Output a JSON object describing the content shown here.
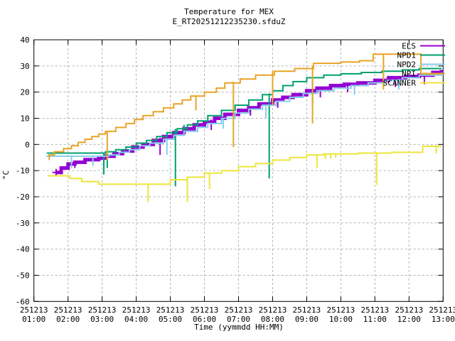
{
  "chart_data": {
    "type": "line",
    "title": "Temperature for MEX",
    "subtitle": "E_RT20251212235230.sfduZ",
    "xlabel": "Time (yymmdd HH:MM)",
    "ylabel": "°C",
    "ylim": [
      -60,
      40
    ],
    "xlim_hours": [
      1,
      13
    ],
    "grid": true,
    "legend_position": "top-right-inside",
    "y_ticks": [
      40,
      30,
      20,
      10,
      0,
      -10,
      -20,
      -30,
      -40,
      -50,
      -60
    ],
    "x_ticks": [
      {
        "date": "251213",
        "time": "01:00",
        "hour": 1
      },
      {
        "date": "251213",
        "time": "02:00",
        "hour": 2
      },
      {
        "date": "251213",
        "time": "03:00",
        "hour": 3
      },
      {
        "date": "251213",
        "time": "04:00",
        "hour": 4
      },
      {
        "date": "251213",
        "time": "05:00",
        "hour": 5
      },
      {
        "date": "251213",
        "time": "06:00",
        "hour": 6
      },
      {
        "date": "251213",
        "time": "07:00",
        "hour": 7
      },
      {
        "date": "251213",
        "time": "08:00",
        "hour": 8
      },
      {
        "date": "251213",
        "time": "09:00",
        "hour": 9
      },
      {
        "date": "251213",
        "time": "10:00",
        "hour": 10
      },
      {
        "date": "251213",
        "time": "11:00",
        "hour": 11
      },
      {
        "date": "251213",
        "time": "12:00",
        "hour": 12
      },
      {
        "date": "251213",
        "time": "13:00",
        "hour": 13
      }
    ],
    "colors": {
      "axis": "#000000",
      "grid": "#b3b3b3",
      "ELS": "#9400d3",
      "NPD1": "#00a070",
      "NPD2": "#87ceeb",
      "NPI": "#e8a427",
      "SCANNER": "#ece53b"
    },
    "series": [
      {
        "name": "ELS",
        "color": "#9400d3",
        "width": 5,
        "start_marker": "plus",
        "points": [
          [
            1.65,
            -10.7
          ],
          [
            1.8,
            -9
          ],
          [
            2.0,
            -7.5
          ],
          [
            2.2,
            -6.8
          ],
          [
            2.5,
            -5.8
          ],
          [
            2.9,
            -5.2
          ],
          [
            3.1,
            -4.5
          ],
          [
            3.35,
            -3.5
          ],
          [
            3.6,
            -2.5
          ],
          [
            3.9,
            -1
          ],
          [
            4.2,
            0
          ],
          [
            4.5,
            1.5
          ],
          [
            4.8,
            3
          ],
          [
            5.1,
            4.5
          ],
          [
            5.4,
            6
          ],
          [
            5.7,
            7.5
          ],
          [
            6.0,
            8.5
          ],
          [
            6.3,
            10
          ],
          [
            6.6,
            11.5
          ],
          [
            7.0,
            13
          ],
          [
            7.3,
            14
          ],
          [
            7.6,
            15.5
          ],
          [
            8.0,
            17
          ],
          [
            8.3,
            18
          ],
          [
            8.6,
            19
          ],
          [
            9.0,
            20.5
          ],
          [
            9.3,
            21.5
          ],
          [
            9.7,
            22.5
          ],
          [
            10.1,
            23
          ],
          [
            10.5,
            23.5
          ],
          [
            11.0,
            24.5
          ],
          [
            11.4,
            25.5
          ],
          [
            11.9,
            26
          ],
          [
            12.3,
            26.5
          ],
          [
            12.7,
            27.5
          ],
          [
            12.95,
            28.5
          ]
        ],
        "spikes": [
          [
            2.2,
            -6.8,
            -9
          ],
          [
            3.05,
            -4.5,
            -7.5
          ],
          [
            4.7,
            2.5,
            -4
          ],
          [
            6.2,
            9.5,
            5.5
          ],
          [
            7.35,
            14,
            11
          ],
          [
            8.15,
            17.5,
            14
          ],
          [
            9.4,
            21.5,
            18
          ],
          [
            10.2,
            23,
            20
          ],
          [
            11.6,
            25.5,
            22
          ],
          [
            12.45,
            27,
            23
          ]
        ]
      },
      {
        "name": "NPD1",
        "color": "#00a070",
        "width": 2,
        "start_marker": "",
        "points": [
          [
            1.38,
            -3.3
          ],
          [
            2.95,
            -3.3
          ],
          [
            3.1,
            -2.8
          ],
          [
            3.4,
            -2
          ],
          [
            3.7,
            -1
          ],
          [
            4.0,
            0.5
          ],
          [
            4.3,
            1.5
          ],
          [
            4.6,
            3
          ],
          [
            4.9,
            4.5
          ],
          [
            5.2,
            6
          ],
          [
            5.5,
            7.5
          ],
          [
            5.8,
            9
          ],
          [
            6.1,
            11
          ],
          [
            6.5,
            13
          ],
          [
            6.9,
            15
          ],
          [
            7.3,
            17
          ],
          [
            7.7,
            19
          ],
          [
            8.0,
            20.5
          ],
          [
            8.3,
            22.5
          ],
          [
            8.6,
            24
          ],
          [
            9.0,
            25.5
          ],
          [
            9.5,
            26.5
          ],
          [
            10.0,
            27
          ],
          [
            10.6,
            27.5
          ],
          [
            11.2,
            28
          ],
          [
            11.8,
            28.5
          ],
          [
            12.3,
            29
          ],
          [
            12.95,
            29
          ]
        ],
        "spikes": [
          [
            3.05,
            -3.3,
            -11.5
          ],
          [
            3.15,
            -3.3,
            -9
          ],
          [
            5.15,
            6,
            -16
          ],
          [
            5.4,
            7.5,
            3.5
          ],
          [
            7.9,
            19.5,
            -13
          ],
          [
            9.17,
            25.5,
            15
          ]
        ]
      },
      {
        "name": "NPD2",
        "color": "#87ceeb",
        "width": 2,
        "start_marker": "",
        "points": [
          [
            1.36,
            -4.5
          ],
          [
            2.95,
            -4.5
          ],
          [
            3.2,
            -4
          ],
          [
            3.5,
            -3
          ],
          [
            3.8,
            -2
          ],
          [
            4.1,
            -0.5
          ],
          [
            4.4,
            0.5
          ],
          [
            4.8,
            2
          ],
          [
            5.1,
            3.5
          ],
          [
            5.4,
            5
          ],
          [
            5.8,
            6.5
          ],
          [
            6.1,
            8
          ],
          [
            6.5,
            10
          ],
          [
            6.9,
            12
          ],
          [
            7.3,
            13.5
          ],
          [
            7.7,
            15
          ],
          [
            8.1,
            16.5
          ],
          [
            8.5,
            18
          ],
          [
            8.9,
            19.5
          ],
          [
            9.3,
            20.5
          ],
          [
            9.8,
            21.5
          ],
          [
            10.3,
            22.5
          ],
          [
            10.8,
            23.5
          ],
          [
            11.3,
            24.5
          ],
          [
            11.8,
            25.5
          ],
          [
            12.3,
            26.5
          ],
          [
            12.95,
            27.5
          ]
        ],
        "spikes": [
          [
            2.1,
            -4.5,
            -9
          ],
          [
            2.73,
            -4.5,
            -8.2
          ],
          [
            4.9,
            2,
            -4
          ],
          [
            6.55,
            10,
            6
          ],
          [
            7.8,
            15,
            10
          ],
          [
            10.4,
            22.5,
            19
          ],
          [
            11.7,
            25,
            21
          ]
        ]
      },
      {
        "name": "NPI",
        "color": "#e8a427",
        "width": 2,
        "start_marker": "",
        "points": [
          [
            1.42,
            -4
          ],
          [
            1.6,
            -2.8
          ],
          [
            1.87,
            -1.6
          ],
          [
            2.1,
            -0.5
          ],
          [
            2.3,
            0.8
          ],
          [
            2.5,
            2
          ],
          [
            2.7,
            3
          ],
          [
            2.9,
            4
          ],
          [
            3.1,
            5
          ],
          [
            3.4,
            6.5
          ],
          [
            3.7,
            8
          ],
          [
            3.95,
            9.5
          ],
          [
            4.2,
            11
          ],
          [
            4.5,
            12.5
          ],
          [
            4.8,
            14
          ],
          [
            5.1,
            15.5
          ],
          [
            5.35,
            17
          ],
          [
            5.6,
            18.5
          ],
          [
            6.0,
            20
          ],
          [
            6.35,
            21.5
          ],
          [
            6.6,
            23.5
          ],
          [
            7.05,
            25
          ],
          [
            7.5,
            26.5
          ],
          [
            8.05,
            28
          ],
          [
            8.65,
            29
          ],
          [
            9.2,
            31
          ],
          [
            10.0,
            31.5
          ],
          [
            10.55,
            32
          ],
          [
            10.95,
            34.5
          ],
          [
            12.3,
            34.5
          ],
          [
            12.35,
            27
          ],
          [
            12.95,
            27
          ]
        ],
        "spikes": [
          [
            1.45,
            -4,
            -6
          ],
          [
            3.15,
            5,
            -6
          ],
          [
            5.75,
            18.5,
            13
          ],
          [
            6.85,
            24,
            -1
          ],
          [
            8.0,
            28,
            15
          ],
          [
            9.17,
            30,
            8
          ],
          [
            11.25,
            34.5,
            21
          ]
        ]
      },
      {
        "name": "SCANNER",
        "color": "#ece53b",
        "width": 2,
        "start_marker": "",
        "points": [
          [
            1.4,
            -12
          ],
          [
            2.05,
            -13
          ],
          [
            2.4,
            -14.2
          ],
          [
            2.9,
            -15.2
          ],
          [
            4.5,
            -15.2
          ],
          [
            5.0,
            -13.5
          ],
          [
            5.5,
            -12.5
          ],
          [
            6.0,
            -11
          ],
          [
            6.5,
            -10
          ],
          [
            7.0,
            -8.5
          ],
          [
            7.5,
            -7.3
          ],
          [
            8.0,
            -6
          ],
          [
            8.5,
            -5
          ],
          [
            9.0,
            -4
          ],
          [
            9.5,
            -3.6
          ],
          [
            10.5,
            -3.3
          ],
          [
            11.5,
            -3
          ],
          [
            12.3,
            -3
          ],
          [
            12.4,
            -0.7
          ],
          [
            12.95,
            -0.7
          ]
        ],
        "spikes": [
          [
            4.35,
            -15.2,
            -22
          ],
          [
            5.5,
            -12.5,
            -22
          ],
          [
            6.15,
            -11,
            -17
          ],
          [
            9.3,
            -3.8,
            -9
          ],
          [
            9.55,
            -3.6,
            -5.5
          ],
          [
            9.7,
            -3.6,
            -5.5
          ],
          [
            9.85,
            -3.5,
            -5
          ],
          [
            11.05,
            -3.2,
            -15.5
          ],
          [
            12.8,
            -0.7,
            -3.5
          ]
        ]
      }
    ],
    "legend": [
      "ELS",
      "NPD1",
      "NPD2",
      "NPI",
      "SCANNER"
    ]
  }
}
